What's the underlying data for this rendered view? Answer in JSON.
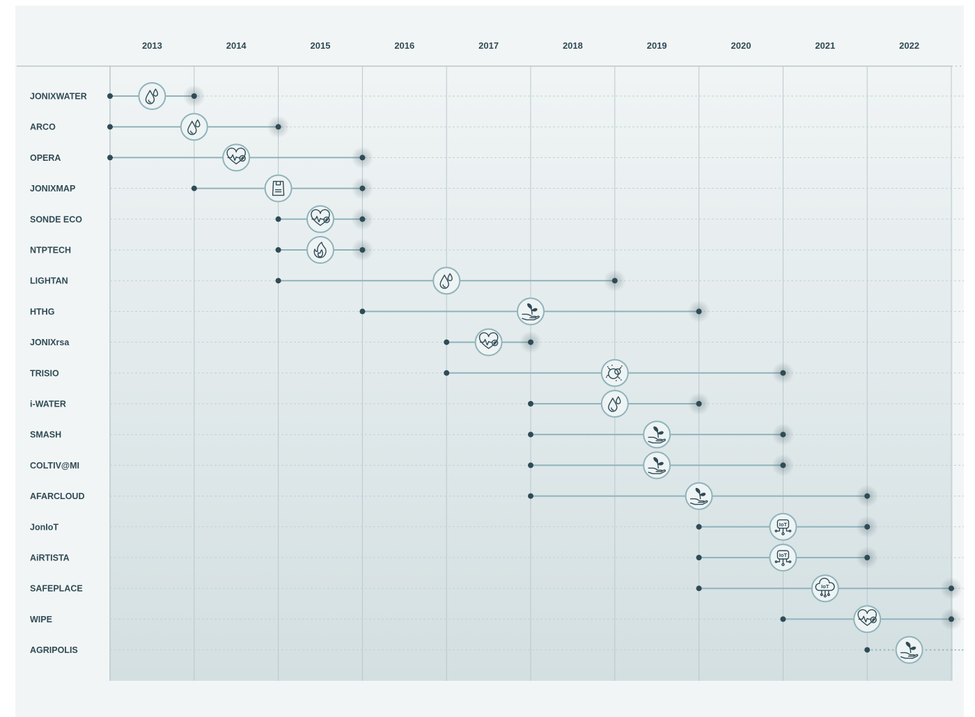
{
  "chart_data": {
    "type": "timeline",
    "title": "",
    "xlabel": "",
    "ylabel": "",
    "years": [
      "2013",
      "2014",
      "2015",
      "2016",
      "2017",
      "2018",
      "2019",
      "2020",
      "2021",
      "2022"
    ],
    "grid": "vertical solid at year boundaries, horizontal dashed per project row",
    "colors": {
      "line": "#8fb3bb",
      "dot": "#2f4b55",
      "grid": "#b9c8cc",
      "text": "#2f4b55"
    },
    "projects": [
      {
        "name": "JONIXWATER",
        "start": 0,
        "end": 1,
        "icon": "water-drop-icon"
      },
      {
        "name": "ARCO",
        "start": 0,
        "end": 2,
        "icon": "water-drop-icon"
      },
      {
        "name": "OPERA",
        "start": 0,
        "end": 3,
        "icon": "heart-health-icon"
      },
      {
        "name": "JONIXMAP",
        "start": 1,
        "end": 3,
        "icon": "bag-icon"
      },
      {
        "name": "SONDE ECO",
        "start": 2,
        "end": 3,
        "icon": "heart-health-icon"
      },
      {
        "name": "NTPTECH",
        "start": 2,
        "end": 3,
        "icon": "flame-icon"
      },
      {
        "name": "LIGHTAN",
        "start": 2,
        "end": 6,
        "icon": "water-drop-icon"
      },
      {
        "name": "HTHG",
        "start": 3,
        "end": 7,
        "icon": "plant-hand-icon"
      },
      {
        "name": "JONIXrsa",
        "start": 4,
        "end": 5,
        "icon": "heart-health-icon"
      },
      {
        "name": "TRISIO",
        "start": 4,
        "end": 8,
        "icon": "virus-icon"
      },
      {
        "name": "i-WATER",
        "start": 5,
        "end": 7,
        "icon": "water-drop-icon"
      },
      {
        "name": "SMASH",
        "start": 5,
        "end": 8,
        "icon": "plant-hand-icon"
      },
      {
        "name": "COLTIV@MI",
        "start": 5,
        "end": 8,
        "icon": "plant-hand-icon"
      },
      {
        "name": "AFARCLOUD",
        "start": 5,
        "end": 9,
        "icon": "plant-hand-icon"
      },
      {
        "name": "JonIoT",
        "start": 7,
        "end": 9,
        "icon": "iot-chip-icon"
      },
      {
        "name": "AiRTISTA",
        "start": 7,
        "end": 9,
        "icon": "iot-chip-icon"
      },
      {
        "name": "SAFEPLACE",
        "start": 7,
        "end": 10,
        "icon": "iot-cloud-icon"
      },
      {
        "name": "WIPE",
        "start": 8,
        "end": 10,
        "icon": "heart-health-icon"
      },
      {
        "name": "AGRIPOLIS",
        "start": 9,
        "end": 10,
        "icon": "plant-hand-icon",
        "ongoing": true
      }
    ],
    "icon_text": {
      "iot": "IoT"
    }
  }
}
